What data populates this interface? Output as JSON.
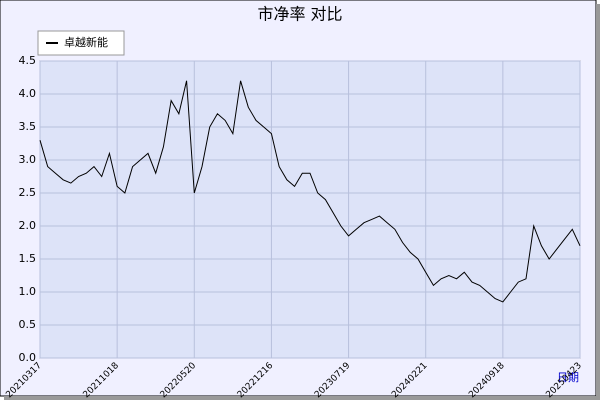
{
  "chart_data": {
    "type": "line",
    "title": "市净率  对比",
    "x_label": "日期",
    "categories": [
      "20210317",
      null,
      null,
      null,
      null,
      null,
      null,
      null,
      null,
      null,
      "20211018",
      null,
      null,
      null,
      null,
      null,
      null,
      null,
      null,
      null,
      "20220520",
      null,
      null,
      null,
      null,
      null,
      null,
      null,
      null,
      null,
      "20221216",
      null,
      null,
      null,
      null,
      null,
      null,
      null,
      null,
      null,
      "20230719",
      null,
      null,
      null,
      null,
      null,
      null,
      null,
      null,
      null,
      "20240221",
      null,
      null,
      null,
      null,
      null,
      null,
      null,
      null,
      null,
      "20240918",
      null,
      null,
      null,
      null,
      null,
      null,
      null,
      null,
      null,
      "20250423"
    ],
    "series": [
      {
        "name": "卓越新能",
        "color": "#000000",
        "values": [
          3.3,
          2.9,
          2.8,
          2.7,
          2.65,
          2.75,
          2.8,
          2.9,
          2.75,
          3.1,
          2.6,
          2.5,
          2.9,
          3.0,
          3.1,
          2.8,
          3.2,
          3.9,
          3.7,
          4.2,
          2.5,
          2.9,
          3.5,
          3.7,
          3.6,
          3.4,
          4.2,
          3.8,
          3.6,
          3.5,
          3.4,
          2.9,
          2.7,
          2.6,
          2.8,
          2.8,
          2.5,
          2.4,
          2.2,
          2.0,
          1.85,
          1.95,
          2.05,
          2.1,
          2.15,
          2.05,
          1.95,
          1.75,
          1.6,
          1.5,
          1.3,
          1.1,
          1.2,
          1.25,
          1.2,
          1.3,
          1.15,
          1.1,
          1.0,
          0.9,
          0.85,
          1.0,
          1.15,
          1.2,
          2.0,
          1.7,
          1.5,
          1.65,
          1.8,
          1.95,
          1.7
        ]
      }
    ],
    "ylim": [
      0,
      4.5
    ],
    "yticks": [
      {
        "value": 0,
        "label": "0.0"
      },
      0.5,
      {
        "value": 1,
        "label": "1.0"
      },
      1.5,
      {
        "value": 2,
        "label": "2.0"
      },
      2.5,
      {
        "value": 3,
        "label": "3.0"
      },
      3.5,
      {
        "value": 4,
        "label": "4.0"
      },
      4.5
    ],
    "grid": true
  }
}
